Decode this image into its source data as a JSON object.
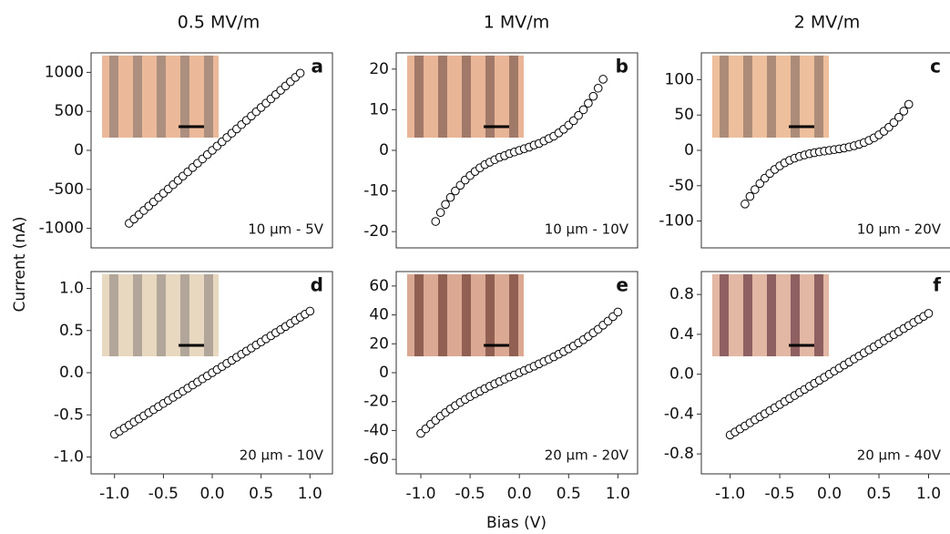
{
  "column_titles": [
    "0.5 MV/m",
    "1 MV/m",
    "2 MV/m"
  ],
  "y_label": "Current (nA)",
  "x_label": "Bias (V)",
  "chart_data": [
    {
      "type": "scatter",
      "panel_label": "a",
      "annotation": "10 μm - 5V",
      "marker_fill": "#ffffff",
      "color": "#000000",
      "xlim": [
        -1.24,
        1.23
      ],
      "ylim": [
        -1250,
        1250
      ],
      "yticks": [
        1000,
        500,
        0,
        -500,
        -1000
      ],
      "x": [
        -0.85,
        -0.8,
        -0.75,
        -0.7,
        -0.65,
        -0.6,
        -0.55,
        -0.5,
        -0.45,
        -0.4,
        -0.35,
        -0.3,
        -0.25,
        -0.2,
        -0.15,
        -0.1,
        -0.05,
        0,
        0.05,
        0.1,
        0.15,
        0.2,
        0.25,
        0.3,
        0.35,
        0.4,
        0.45,
        0.5,
        0.55,
        0.6,
        0.65,
        0.7,
        0.75,
        0.8,
        0.85,
        0.9
      ],
      "values": [
        -935,
        -880,
        -825,
        -770,
        -715,
        -660,
        -605,
        -550,
        -495,
        -440,
        -385,
        -330,
        -275,
        -220,
        -165,
        -110,
        -55,
        0,
        55,
        110,
        165,
        220,
        275,
        330,
        385,
        440,
        495,
        550,
        605,
        660,
        715,
        770,
        825,
        880,
        935,
        990
      ]
    },
    {
      "type": "scatter",
      "panel_label": "b",
      "annotation": "10 μm - 10V",
      "marker_fill": "#ffffff",
      "color": "#000000",
      "xlim": [
        -1.25,
        1.2
      ],
      "ylim": [
        -24,
        24
      ],
      "yticks": [
        20,
        10,
        0,
        -10,
        -20
      ],
      "x": [
        -0.85,
        -0.8,
        -0.75,
        -0.7,
        -0.65,
        -0.6,
        -0.55,
        -0.5,
        -0.45,
        -0.4,
        -0.35,
        -0.3,
        -0.25,
        -0.2,
        -0.15,
        -0.1,
        -0.05,
        0,
        0.05,
        0.1,
        0.15,
        0.2,
        0.25,
        0.3,
        0.35,
        0.4,
        0.45,
        0.5,
        0.55,
        0.6,
        0.65,
        0.7,
        0.75,
        0.8,
        0.85
      ],
      "values": [
        -17.5,
        -15.3,
        -13.3,
        -11.6,
        -10.0,
        -8.6,
        -7.3,
        -6.2,
        -5.2,
        -4.3,
        -3.5,
        -2.9,
        -2.3,
        -1.7,
        -1.3,
        -0.8,
        -0.4,
        0,
        0.4,
        0.8,
        1.3,
        1.7,
        2.3,
        2.9,
        3.5,
        4.3,
        5.2,
        6.2,
        7.3,
        8.6,
        10.0,
        11.6,
        13.3,
        15.3,
        17.5
      ]
    },
    {
      "type": "scatter",
      "panel_label": "c",
      "annotation": "10 μm - 20V",
      "marker_fill": "#ffffff",
      "color": "#000000",
      "xlim": [
        -1.29,
        1.28
      ],
      "ylim": [
        -138,
        138
      ],
      "yticks": [
        100,
        50,
        0,
        -50,
        -100
      ],
      "x": [
        -0.85,
        -0.8,
        -0.75,
        -0.7,
        -0.65,
        -0.6,
        -0.55,
        -0.5,
        -0.45,
        -0.4,
        -0.35,
        -0.3,
        -0.25,
        -0.2,
        -0.15,
        -0.1,
        -0.05,
        0,
        0.05,
        0.1,
        0.15,
        0.2,
        0.25,
        0.3,
        0.35,
        0.4,
        0.45,
        0.5,
        0.55,
        0.6,
        0.65,
        0.7,
        0.75,
        0.8
      ],
      "values": [
        -75.9,
        -65.2,
        -55.5,
        -46.9,
        -39.4,
        -32.7,
        -27.0,
        -22,
        -17.7,
        -14.1,
        -11.1,
        -8.6,
        -6.5,
        -4.8,
        -3.3,
        -2.1,
        -1.0,
        0,
        1.0,
        2.1,
        3.3,
        4.8,
        6.5,
        8.6,
        11.1,
        14.1,
        17.7,
        22,
        27.0,
        32.7,
        39.4,
        46.9,
        55.5,
        65.2
      ]
    },
    {
      "type": "scatter",
      "panel_label": "d",
      "annotation": "20 μm - 10V",
      "marker_fill": "#ffffff",
      "color": "#000000",
      "xlim": [
        -1.24,
        1.23
      ],
      "ylim": [
        -1.2,
        1.2
      ],
      "yticks": [
        {
          "value": 1,
          "label": "1.0"
        },
        0.5,
        {
          "value": 0,
          "label": "0.0"
        },
        -0.5,
        {
          "value": -1,
          "label": "-1.0"
        }
      ],
      "xticks": [
        {
          "value": -1,
          "label": "-1.0"
        },
        -0.5,
        {
          "value": 0,
          "label": "0.0"
        },
        0.5,
        {
          "value": 1,
          "label": "1.0"
        }
      ],
      "x": [
        -1,
        -0.95,
        -0.9,
        -0.85,
        -0.8,
        -0.75,
        -0.7,
        -0.65,
        -0.6,
        -0.55,
        -0.5,
        -0.45,
        -0.4,
        -0.35,
        -0.3,
        -0.25,
        -0.2,
        -0.15,
        -0.1,
        -0.05,
        0,
        0.05,
        0.1,
        0.15,
        0.2,
        0.25,
        0.3,
        0.35,
        0.4,
        0.45,
        0.5,
        0.55,
        0.6,
        0.65,
        0.7,
        0.75,
        0.8,
        0.85,
        0.9,
        0.95,
        1
      ],
      "values": [
        -0.73,
        -0.694,
        -0.657,
        -0.621,
        -0.584,
        -0.548,
        -0.511,
        -0.475,
        -0.438,
        -0.402,
        -0.365,
        -0.329,
        -0.292,
        -0.256,
        -0.219,
        -0.183,
        -0.146,
        -0.11,
        -0.073,
        -0.037,
        0,
        0.037,
        0.073,
        0.11,
        0.146,
        0.183,
        0.219,
        0.256,
        0.292,
        0.329,
        0.365,
        0.402,
        0.438,
        0.475,
        0.511,
        0.548,
        0.584,
        0.621,
        0.657,
        0.694,
        0.73
      ]
    },
    {
      "type": "scatter",
      "panel_label": "e",
      "annotation": "20 μm - 20V",
      "marker_fill": "#ffffff",
      "color": "#000000",
      "xlim": [
        -1.25,
        1.2
      ],
      "ylim": [
        -70,
        70
      ],
      "yticks": [
        60,
        40,
        20,
        0,
        -20,
        -40,
        -60
      ],
      "xticks": [
        {
          "value": -1,
          "label": "-1.0"
        },
        -0.5,
        {
          "value": 0,
          "label": "0.0"
        },
        0.5,
        {
          "value": 1,
          "label": "1.0"
        }
      ],
      "x": [
        -1,
        -0.95,
        -0.9,
        -0.85,
        -0.8,
        -0.75,
        -0.7,
        -0.65,
        -0.6,
        -0.55,
        -0.5,
        -0.45,
        -0.4,
        -0.35,
        -0.3,
        -0.25,
        -0.2,
        -0.15,
        -0.1,
        -0.05,
        0,
        0.05,
        0.1,
        0.15,
        0.2,
        0.25,
        0.3,
        0.35,
        0.4,
        0.45,
        0.5,
        0.55,
        0.6,
        0.65,
        0.7,
        0.75,
        0.8,
        0.85,
        0.9,
        0.95,
        1
      ],
      "values": [
        -42,
        -38.8,
        -35.7,
        -32.9,
        -30.1,
        -27.6,
        -25.1,
        -22.8,
        -20.6,
        -18.5,
        -16.5,
        -14.6,
        -12.8,
        -11.0,
        -9.3,
        -7.7,
        -6.1,
        -4.5,
        -3.0,
        -1.5,
        0,
        1.5,
        3.0,
        4.5,
        6.1,
        7.7,
        9.3,
        11.0,
        12.8,
        14.6,
        16.5,
        18.5,
        20.6,
        22.8,
        25.1,
        27.6,
        30.1,
        32.9,
        35.7,
        38.8,
        42
      ]
    },
    {
      "type": "scatter",
      "panel_label": "f",
      "annotation": "20 μm - 40V",
      "marker_fill": "#ffffff",
      "color": "#000000",
      "xlim": [
        -1.29,
        1.28
      ],
      "ylim": [
        -1,
        1.03
      ],
      "yticks": [
        0.8,
        0.4,
        {
          "value": 0,
          "label": "0.0"
        },
        -0.4,
        -0.8
      ],
      "xticks": [
        {
          "value": -1,
          "label": "-1.0"
        },
        -0.5,
        {
          "value": 0,
          "label": "0.0"
        },
        0.5,
        {
          "value": 1,
          "label": "1.0"
        }
      ],
      "x": [
        -1,
        -0.95,
        -0.9,
        -0.85,
        -0.8,
        -0.75,
        -0.7,
        -0.65,
        -0.6,
        -0.55,
        -0.5,
        -0.45,
        -0.4,
        -0.35,
        -0.3,
        -0.25,
        -0.2,
        -0.15,
        -0.1,
        -0.05,
        0,
        0.05,
        0.1,
        0.15,
        0.2,
        0.25,
        0.3,
        0.35,
        0.4,
        0.45,
        0.5,
        0.55,
        0.6,
        0.65,
        0.7,
        0.75,
        0.8,
        0.85,
        0.9,
        0.95,
        1
      ],
      "values": [
        -0.61,
        -0.58,
        -0.549,
        -0.519,
        -0.488,
        -0.458,
        -0.427,
        -0.397,
        -0.366,
        -0.336,
        -0.305,
        -0.275,
        -0.244,
        -0.214,
        -0.183,
        -0.153,
        -0.122,
        -0.092,
        -0.061,
        -0.031,
        0,
        0.031,
        0.061,
        0.092,
        0.122,
        0.153,
        0.183,
        0.214,
        0.244,
        0.275,
        0.305,
        0.336,
        0.366,
        0.397,
        0.427,
        0.458,
        0.488,
        0.519,
        0.549,
        0.58,
        0.61
      ]
    }
  ]
}
